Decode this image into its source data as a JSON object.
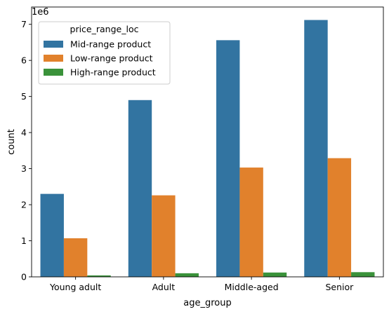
{
  "chart_data": {
    "type": "bar",
    "xlabel": "age_group",
    "ylabel": "count",
    "y_multiplier_label": "1e6",
    "categories": [
      "Young adult",
      "Adult",
      "Middle-aged",
      "Senior"
    ],
    "ylim": [
      0,
      7.48
    ],
    "yticks": [
      "0",
      "1",
      "2",
      "3",
      "4",
      "5",
      "6",
      "7"
    ],
    "legend": {
      "title": "price_range_loc",
      "position": "top-left"
    },
    "series": [
      {
        "name": "Mid-range product",
        "color": "#3274a1",
        "values": [
          2.3,
          4.9,
          6.56,
          7.12
        ]
      },
      {
        "name": "Low-range product",
        "color": "#e1812c",
        "values": [
          1.07,
          2.26,
          3.03,
          3.29
        ]
      },
      {
        "name": "High-range product",
        "color": "#3a923a",
        "values": [
          0.04,
          0.1,
          0.12,
          0.13
        ]
      }
    ]
  }
}
